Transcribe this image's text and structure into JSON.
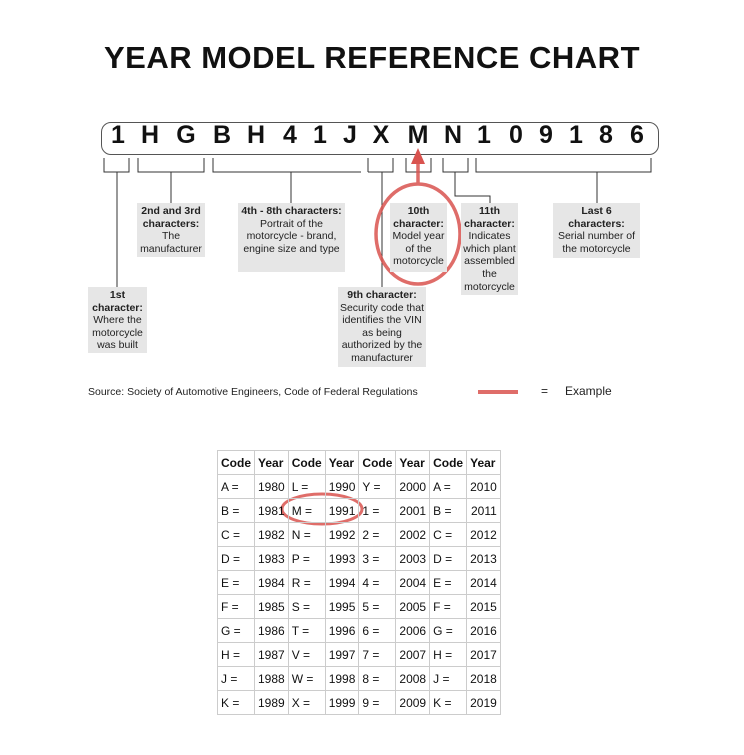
{
  "title": "YEAR MODEL REFERENCE CHART",
  "vin": [
    "1",
    "H",
    "G",
    "B",
    "H",
    "4",
    "1",
    "J",
    "X",
    "M",
    "N",
    "1",
    "0",
    "9",
    "1",
    "8",
    "6"
  ],
  "labels": {
    "first": {
      "head": "1st character:",
      "body": "Where the motorcycle was built"
    },
    "second": {
      "head": "2nd and 3rd characters:",
      "body": "The manufacturer"
    },
    "fourth": {
      "head": "4th - 8th characters:",
      "body": "Portrait of the motorcycle - brand, engine size and type"
    },
    "ninth": {
      "head": "9th character:",
      "body": "Security code that identifies the VIN as being authorized by the manufacturer"
    },
    "tenth": {
      "head": "10th character:",
      "body": "Model year of the motorcycle"
    },
    "eleventh": {
      "head": "11th character:",
      "body": "Indicates which plant assembled the motorcycle"
    },
    "last": {
      "head": "Last 6 characters:",
      "body": "Serial number of the motorcycle"
    }
  },
  "source": "Source:  Society of Automotive Engineers, Code of Federal Regulations",
  "legend": {
    "equals": "=",
    "label": "Example",
    "color": "#d9534f"
  },
  "table": {
    "headers": [
      "Code",
      "Year",
      "Code",
      "Year",
      "Code",
      "Year",
      "Code",
      "Year"
    ],
    "rows": [
      [
        "A =",
        "1980",
        "L =",
        "1990",
        "Y =",
        "2000",
        "A =",
        "2010"
      ],
      [
        "B =",
        "1981",
        "M =",
        "1991",
        "1 =",
        "2001",
        "B =",
        "2011"
      ],
      [
        "C =",
        "1982",
        "N =",
        "1992",
        "2 =",
        "2002",
        "C =",
        "2012"
      ],
      [
        "D =",
        "1983",
        "P =",
        "1993",
        "3 =",
        "2003",
        "D =",
        "2013"
      ],
      [
        "E =",
        "1984",
        "R =",
        "1994",
        "4 =",
        "2004",
        "E =",
        "2014"
      ],
      [
        "F =",
        "1985",
        "S =",
        "1995",
        "5 =",
        "2005",
        "F =",
        "2015"
      ],
      [
        "G =",
        "1986",
        "T =",
        "1996",
        "6 =",
        "2006",
        "G =",
        "2016"
      ],
      [
        "H =",
        "1987",
        "V =",
        "1997",
        "7 =",
        "2007",
        "H =",
        "2017"
      ],
      [
        "J =",
        "1988",
        "W =",
        "1998",
        "8 =",
        "2008",
        "J =",
        "2018"
      ],
      [
        "K =",
        "1989",
        "X =",
        "1999",
        "9 =",
        "2009",
        "K =",
        "2019"
      ]
    ]
  }
}
